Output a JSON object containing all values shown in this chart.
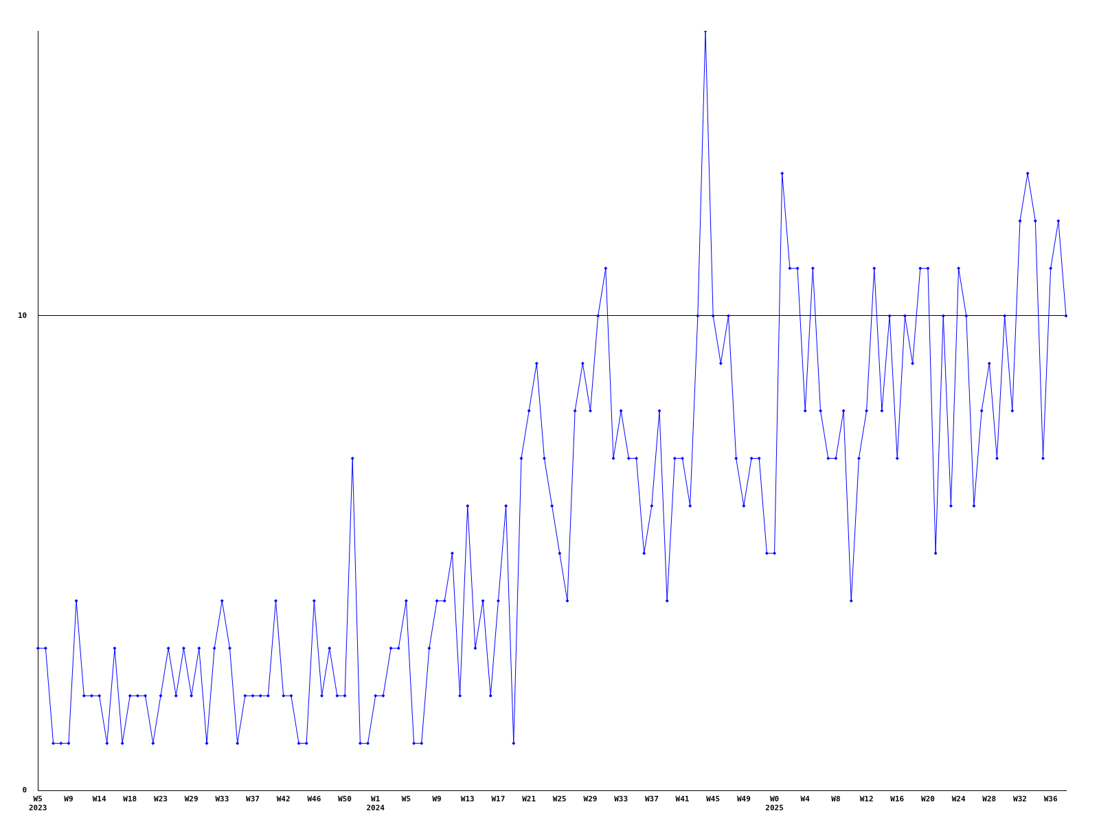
{
  "chart_data": {
    "type": "line",
    "categories": [
      "W5\n2023",
      null,
      null,
      null,
      "W9",
      null,
      null,
      null,
      "W14",
      null,
      null,
      null,
      "W18",
      null,
      null,
      null,
      "W23",
      null,
      null,
      null,
      "W29",
      null,
      null,
      null,
      "W33",
      null,
      null,
      null,
      "W37",
      null,
      null,
      null,
      "W42",
      null,
      null,
      null,
      "W46",
      null,
      null,
      null,
      "W50",
      null,
      null,
      null,
      "W1\n2024",
      null,
      null,
      null,
      "W5",
      null,
      null,
      null,
      "W9",
      null,
      null,
      null,
      "W13",
      null,
      null,
      null,
      "W17",
      null,
      null,
      null,
      "W21",
      null,
      null,
      null,
      "W25",
      null,
      null,
      null,
      "W29",
      null,
      null,
      null,
      "W33",
      null,
      null,
      null,
      "W37",
      null,
      null,
      null,
      "W41",
      null,
      null,
      null,
      "W45",
      null,
      null,
      null,
      "W49",
      null,
      null,
      null,
      "W0\n2025",
      null,
      null,
      null,
      "W4",
      null,
      null,
      null,
      "W8",
      null,
      null,
      null,
      "W12",
      null,
      null,
      null,
      "W16",
      null,
      null,
      null,
      "W20",
      null,
      null,
      null,
      "W24",
      null,
      null,
      null,
      "W28",
      null,
      null,
      null,
      "W32",
      null,
      null,
      null,
      "W36",
      null,
      null
    ],
    "series": [
      {
        "color": "#0000ff",
        "values": [
          3,
          3,
          1,
          1,
          1,
          4,
          2,
          2,
          2,
          1,
          3,
          1,
          2,
          2,
          2,
          1,
          2,
          3,
          2,
          3,
          2,
          3,
          1,
          3,
          4,
          3,
          1,
          2,
          2,
          2,
          2,
          4,
          2,
          2,
          1,
          1,
          4,
          2,
          3,
          2,
          2,
          7,
          1,
          1,
          2,
          2,
          3,
          3,
          4,
          1,
          1,
          3,
          4,
          4,
          5,
          2,
          6,
          3,
          4,
          2,
          4,
          6,
          1,
          7,
          8,
          9,
          7,
          6,
          5,
          4,
          8,
          9,
          8,
          10,
          11,
          7,
          8,
          7,
          7,
          5,
          6,
          8,
          4,
          7,
          7,
          6,
          10,
          16,
          10,
          9,
          10,
          7,
          6,
          7,
          7,
          5,
          5,
          13,
          11,
          11,
          8,
          11,
          8,
          7,
          7,
          8,
          4,
          7,
          8,
          11,
          8,
          10,
          7,
          10,
          9,
          11,
          11,
          5,
          10,
          6,
          11,
          10,
          6,
          8,
          9,
          7,
          10,
          8,
          12,
          13,
          12,
          7,
          11,
          12,
          10
        ]
      }
    ],
    "ylim": [
      0,
      16
    ],
    "yticks": [
      0,
      10
    ],
    "grid": "y",
    "legend": false,
    "marker": "diamond",
    "line_style": "solid"
  }
}
